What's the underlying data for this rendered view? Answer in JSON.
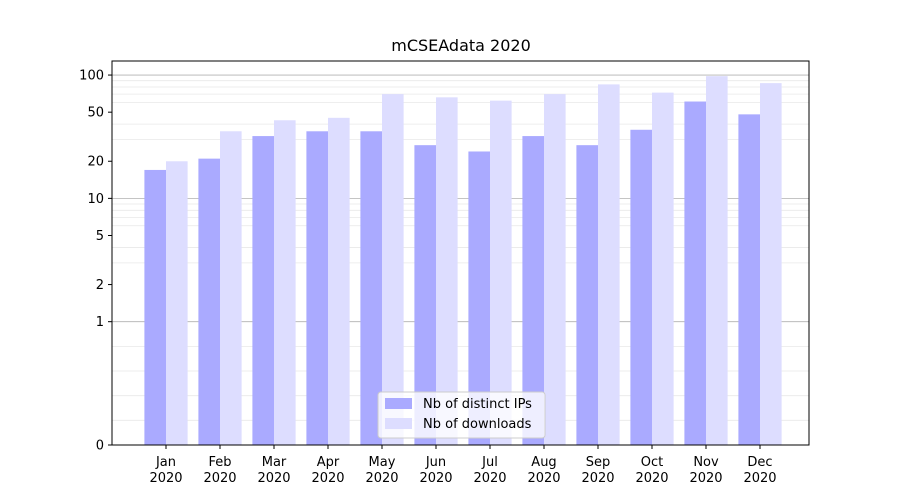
{
  "chart_data": {
    "type": "bar",
    "title": "mCSEAdata 2020",
    "xlabel": "",
    "ylabel": "",
    "yscale": "symlog",
    "ylim": [
      0,
      130
    ],
    "yticks": [
      0,
      1,
      2,
      5,
      10,
      20,
      50,
      100
    ],
    "categories": [
      [
        "Jan",
        "2020"
      ],
      [
        "Feb",
        "2020"
      ],
      [
        "Mar",
        "2020"
      ],
      [
        "Apr",
        "2020"
      ],
      [
        "May",
        "2020"
      ],
      [
        "Jun",
        "2020"
      ],
      [
        "Jul",
        "2020"
      ],
      [
        "Aug",
        "2020"
      ],
      [
        "Sep",
        "2020"
      ],
      [
        "Oct",
        "2020"
      ],
      [
        "Nov",
        "2020"
      ],
      [
        "Dec",
        "2020"
      ]
    ],
    "series": [
      {
        "name": "Nb of distinct IPs",
        "color": "#aaaaff",
        "values": [
          17,
          21,
          32,
          35,
          35,
          27,
          24,
          32,
          27,
          36,
          61,
          48
        ]
      },
      {
        "name": "Nb of downloads",
        "color": "#ddddff",
        "values": [
          20,
          35,
          43,
          45,
          70,
          66,
          62,
          70,
          84,
          72,
          98,
          86
        ]
      }
    ],
    "grid": true,
    "legend_position": "bottom-center"
  }
}
